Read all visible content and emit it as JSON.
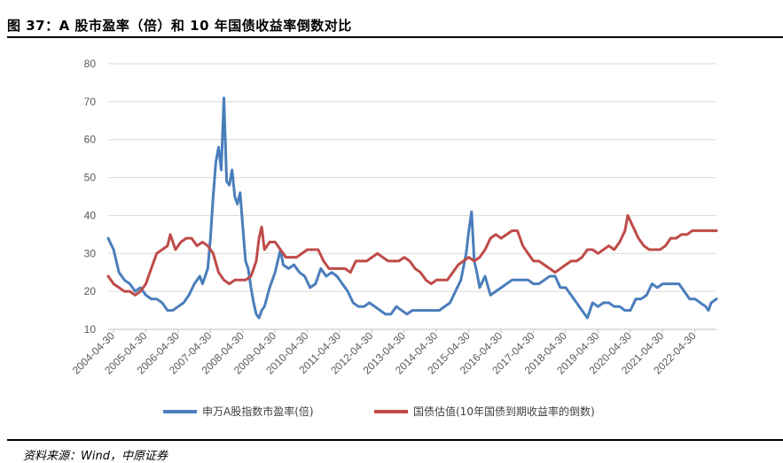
{
  "title": "图 37：A 股市盈率（倍）和 10 年国债收益率倒数对比",
  "source": "资料来源：Wind，中原证券",
  "chart_data": {
    "type": "line",
    "ylim": [
      10,
      80
    ],
    "y_ticks": [
      "10",
      "20",
      "30",
      "40",
      "50",
      "60",
      "70",
      "80"
    ],
    "x_ticks": [
      "2004-04-30",
      "2005-04-30",
      "2006-04-30",
      "2007-04-30",
      "2008-04-30",
      "2009-04-30",
      "2010-04-30",
      "2011-04-30",
      "2012-04-30",
      "2013-04-30",
      "2014-04-30",
      "2015-04-30",
      "2016-04-30",
      "2017-04-30",
      "2018-04-30",
      "2019-04-30",
      "2020-04-30",
      "2021-04-30",
      "2022-04-30"
    ],
    "grid": "horizontal",
    "legend_position": "bottom",
    "colors": {
      "pe": "#4a7ebb",
      "bond": "#be4b48",
      "grid": "#d9d9d9",
      "axis": "#bfbfbf"
    },
    "series": [
      {
        "name": "申万A股指数市盈率(倍)",
        "points": [
          [
            "2004-03-01",
            34
          ],
          [
            "2004-05-01",
            31
          ],
          [
            "2004-07-01",
            25
          ],
          [
            "2004-09-01",
            23
          ],
          [
            "2004-11-01",
            22
          ],
          [
            "2005-01-01",
            20
          ],
          [
            "2005-03-01",
            21
          ],
          [
            "2005-05-01",
            19
          ],
          [
            "2005-07-01",
            18
          ],
          [
            "2005-09-01",
            18
          ],
          [
            "2005-11-01",
            17
          ],
          [
            "2006-01-01",
            15
          ],
          [
            "2006-03-01",
            15
          ],
          [
            "2006-05-01",
            16
          ],
          [
            "2006-07-01",
            17
          ],
          [
            "2006-09-01",
            19
          ],
          [
            "2006-11-01",
            22
          ],
          [
            "2007-01-01",
            24
          ],
          [
            "2007-02-01",
            22
          ],
          [
            "2007-04-01",
            26
          ],
          [
            "2007-05-01",
            34
          ],
          [
            "2007-06-01",
            45
          ],
          [
            "2007-07-01",
            54
          ],
          [
            "2007-08-01",
            58
          ],
          [
            "2007-09-01",
            52
          ],
          [
            "2007-10-01",
            71
          ],
          [
            "2007-11-01",
            49
          ],
          [
            "2007-12-01",
            48
          ],
          [
            "2008-01-01",
            52
          ],
          [
            "2008-02-01",
            45
          ],
          [
            "2008-03-01",
            43
          ],
          [
            "2008-04-01",
            46
          ],
          [
            "2008-05-01",
            37
          ],
          [
            "2008-06-01",
            28
          ],
          [
            "2008-07-01",
            26
          ],
          [
            "2008-08-01",
            21
          ],
          [
            "2008-09-01",
            17
          ],
          [
            "2008-10-01",
            14
          ],
          [
            "2008-11-01",
            13
          ],
          [
            "2008-12-01",
            15
          ],
          [
            "2009-01-01",
            16
          ],
          [
            "2009-03-01",
            21
          ],
          [
            "2009-05-01",
            25
          ],
          [
            "2009-07-01",
            31
          ],
          [
            "2009-08-01",
            27
          ],
          [
            "2009-10-01",
            26
          ],
          [
            "2009-12-01",
            27
          ],
          [
            "2010-02-01",
            25
          ],
          [
            "2010-04-01",
            24
          ],
          [
            "2010-06-01",
            21
          ],
          [
            "2010-08-01",
            22
          ],
          [
            "2010-10-01",
            26
          ],
          [
            "2010-12-01",
            24
          ],
          [
            "2011-02-01",
            25
          ],
          [
            "2011-04-01",
            24
          ],
          [
            "2011-06-01",
            22
          ],
          [
            "2011-08-01",
            20
          ],
          [
            "2011-10-01",
            17
          ],
          [
            "2011-12-01",
            16
          ],
          [
            "2012-02-01",
            16
          ],
          [
            "2012-04-01",
            17
          ],
          [
            "2012-06-01",
            16
          ],
          [
            "2012-08-01",
            15
          ],
          [
            "2012-10-01",
            14
          ],
          [
            "2012-12-01",
            14
          ],
          [
            "2013-02-01",
            16
          ],
          [
            "2013-04-01",
            15
          ],
          [
            "2013-06-01",
            14
          ],
          [
            "2013-08-01",
            15
          ],
          [
            "2013-10-01",
            15
          ],
          [
            "2013-12-01",
            15
          ],
          [
            "2014-02-01",
            15
          ],
          [
            "2014-04-01",
            15
          ],
          [
            "2014-06-01",
            15
          ],
          [
            "2014-08-01",
            16
          ],
          [
            "2014-10-01",
            17
          ],
          [
            "2014-12-01",
            20
          ],
          [
            "2015-02-01",
            23
          ],
          [
            "2015-04-01",
            30
          ],
          [
            "2015-05-01",
            36
          ],
          [
            "2015-06-01",
            41
          ],
          [
            "2015-07-01",
            28
          ],
          [
            "2015-08-01",
            25
          ],
          [
            "2015-09-01",
            21
          ],
          [
            "2015-11-01",
            24
          ],
          [
            "2016-01-01",
            19
          ],
          [
            "2016-03-01",
            20
          ],
          [
            "2016-05-01",
            21
          ],
          [
            "2016-07-01",
            22
          ],
          [
            "2016-09-01",
            23
          ],
          [
            "2016-11-01",
            23
          ],
          [
            "2017-01-01",
            23
          ],
          [
            "2017-03-01",
            23
          ],
          [
            "2017-05-01",
            22
          ],
          [
            "2017-07-01",
            22
          ],
          [
            "2017-09-01",
            23
          ],
          [
            "2017-11-01",
            24
          ],
          [
            "2018-01-01",
            24
          ],
          [
            "2018-03-01",
            21
          ],
          [
            "2018-05-01",
            21
          ],
          [
            "2018-07-01",
            19
          ],
          [
            "2018-09-01",
            17
          ],
          [
            "2018-11-01",
            15
          ],
          [
            "2019-01-01",
            13
          ],
          [
            "2019-03-01",
            17
          ],
          [
            "2019-05-01",
            16
          ],
          [
            "2019-07-01",
            17
          ],
          [
            "2019-09-01",
            17
          ],
          [
            "2019-11-01",
            16
          ],
          [
            "2020-01-01",
            16
          ],
          [
            "2020-03-01",
            15
          ],
          [
            "2020-05-01",
            15
          ],
          [
            "2020-07-01",
            18
          ],
          [
            "2020-09-01",
            18
          ],
          [
            "2020-11-01",
            19
          ],
          [
            "2021-01-01",
            22
          ],
          [
            "2021-03-01",
            21
          ],
          [
            "2021-05-01",
            22
          ],
          [
            "2021-07-01",
            22
          ],
          [
            "2021-09-01",
            22
          ],
          [
            "2021-11-01",
            22
          ],
          [
            "2022-01-01",
            20
          ],
          [
            "2022-03-01",
            18
          ],
          [
            "2022-05-01",
            18
          ],
          [
            "2022-07-01",
            17
          ],
          [
            "2022-09-01",
            16
          ],
          [
            "2022-10-01",
            15
          ],
          [
            "2022-11-01",
            17
          ],
          [
            "2022-12-31",
            18
          ]
        ]
      },
      {
        "name": "国债估值(10年国债到期收益率的倒数)",
        "points": [
          [
            "2004-03-01",
            24
          ],
          [
            "2004-05-01",
            22
          ],
          [
            "2004-07-01",
            21
          ],
          [
            "2004-09-01",
            20
          ],
          [
            "2004-11-01",
            20
          ],
          [
            "2005-01-01",
            19
          ],
          [
            "2005-03-01",
            20
          ],
          [
            "2005-05-01",
            22
          ],
          [
            "2005-07-01",
            26
          ],
          [
            "2005-09-01",
            30
          ],
          [
            "2005-11-01",
            31
          ],
          [
            "2006-01-01",
            32
          ],
          [
            "2006-02-01",
            35
          ],
          [
            "2006-04-01",
            31
          ],
          [
            "2006-06-01",
            33
          ],
          [
            "2006-08-01",
            34
          ],
          [
            "2006-10-01",
            34
          ],
          [
            "2006-12-01",
            32
          ],
          [
            "2007-02-01",
            33
          ],
          [
            "2007-04-01",
            32
          ],
          [
            "2007-06-01",
            30
          ],
          [
            "2007-08-01",
            25
          ],
          [
            "2007-10-01",
            23
          ],
          [
            "2007-12-01",
            22
          ],
          [
            "2008-02-01",
            23
          ],
          [
            "2008-04-01",
            23
          ],
          [
            "2008-06-01",
            23
          ],
          [
            "2008-08-01",
            24
          ],
          [
            "2008-10-01",
            28
          ],
          [
            "2008-11-01",
            34
          ],
          [
            "2008-12-01",
            37
          ],
          [
            "2009-01-01",
            31
          ],
          [
            "2009-03-01",
            33
          ],
          [
            "2009-05-01",
            33
          ],
          [
            "2009-07-01",
            31
          ],
          [
            "2009-09-01",
            29
          ],
          [
            "2009-11-01",
            29
          ],
          [
            "2010-01-01",
            29
          ],
          [
            "2010-03-01",
            30
          ],
          [
            "2010-05-01",
            31
          ],
          [
            "2010-07-01",
            31
          ],
          [
            "2010-09-01",
            31
          ],
          [
            "2010-11-01",
            28
          ],
          [
            "2011-01-01",
            26
          ],
          [
            "2011-03-01",
            26
          ],
          [
            "2011-05-01",
            26
          ],
          [
            "2011-07-01",
            26
          ],
          [
            "2011-09-01",
            25
          ],
          [
            "2011-11-01",
            28
          ],
          [
            "2012-01-01",
            28
          ],
          [
            "2012-03-01",
            28
          ],
          [
            "2012-05-01",
            29
          ],
          [
            "2012-07-01",
            30
          ],
          [
            "2012-09-01",
            29
          ],
          [
            "2012-11-01",
            28
          ],
          [
            "2013-01-01",
            28
          ],
          [
            "2013-03-01",
            28
          ],
          [
            "2013-05-01",
            29
          ],
          [
            "2013-07-01",
            28
          ],
          [
            "2013-09-01",
            26
          ],
          [
            "2013-11-01",
            25
          ],
          [
            "2014-01-01",
            23
          ],
          [
            "2014-03-01",
            22
          ],
          [
            "2014-05-01",
            23
          ],
          [
            "2014-07-01",
            23
          ],
          [
            "2014-09-01",
            23
          ],
          [
            "2014-11-01",
            25
          ],
          [
            "2015-01-01",
            27
          ],
          [
            "2015-03-01",
            28
          ],
          [
            "2015-05-01",
            29
          ],
          [
            "2015-07-01",
            28
          ],
          [
            "2015-09-01",
            29
          ],
          [
            "2015-11-01",
            31
          ],
          [
            "2016-01-01",
            34
          ],
          [
            "2016-03-01",
            35
          ],
          [
            "2016-05-01",
            34
          ],
          [
            "2016-07-01",
            35
          ],
          [
            "2016-09-01",
            36
          ],
          [
            "2016-11-01",
            36
          ],
          [
            "2017-01-01",
            32
          ],
          [
            "2017-03-01",
            30
          ],
          [
            "2017-05-01",
            28
          ],
          [
            "2017-07-01",
            28
          ],
          [
            "2017-09-01",
            27
          ],
          [
            "2017-11-01",
            26
          ],
          [
            "2018-01-01",
            25
          ],
          [
            "2018-03-01",
            26
          ],
          [
            "2018-05-01",
            27
          ],
          [
            "2018-07-01",
            28
          ],
          [
            "2018-09-01",
            28
          ],
          [
            "2018-11-01",
            29
          ],
          [
            "2019-01-01",
            31
          ],
          [
            "2019-03-01",
            31
          ],
          [
            "2019-05-01",
            30
          ],
          [
            "2019-07-01",
            31
          ],
          [
            "2019-09-01",
            32
          ],
          [
            "2019-11-01",
            31
          ],
          [
            "2020-01-01",
            33
          ],
          [
            "2020-03-01",
            36
          ],
          [
            "2020-04-01",
            40
          ],
          [
            "2020-06-01",
            37
          ],
          [
            "2020-08-01",
            34
          ],
          [
            "2020-10-01",
            32
          ],
          [
            "2020-12-01",
            31
          ],
          [
            "2021-02-01",
            31
          ],
          [
            "2021-04-01",
            31
          ],
          [
            "2021-06-01",
            32
          ],
          [
            "2021-08-01",
            34
          ],
          [
            "2021-10-01",
            34
          ],
          [
            "2021-12-01",
            35
          ],
          [
            "2022-02-01",
            35
          ],
          [
            "2022-04-01",
            36
          ],
          [
            "2022-06-01",
            36
          ],
          [
            "2022-08-01",
            36
          ],
          [
            "2022-10-01",
            36
          ],
          [
            "2022-12-31",
            36
          ]
        ]
      }
    ]
  }
}
